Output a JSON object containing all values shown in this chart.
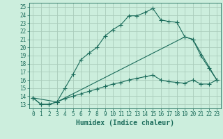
{
  "xlabel": "Humidex (Indice chaleur)",
  "xlim": [
    -0.5,
    23.5
  ],
  "ylim": [
    12.5,
    25.5
  ],
  "xticks": [
    0,
    1,
    2,
    3,
    4,
    5,
    6,
    7,
    8,
    9,
    10,
    11,
    12,
    13,
    14,
    15,
    16,
    17,
    18,
    19,
    20,
    21,
    22,
    23
  ],
  "yticks": [
    13,
    14,
    15,
    16,
    17,
    18,
    19,
    20,
    21,
    22,
    23,
    24,
    25
  ],
  "bg_color": "#cceedd",
  "grid_color": "#aaccbb",
  "line_color": "#1a6b5a",
  "line1_x": [
    0,
    1,
    2,
    3,
    4,
    5,
    6,
    7,
    8,
    9,
    10,
    11,
    12,
    13,
    14,
    15,
    16,
    17,
    18,
    19,
    20,
    21,
    22,
    23
  ],
  "line1_y": [
    13.8,
    13.0,
    13.0,
    13.3,
    15.0,
    16.7,
    18.5,
    19.3,
    20.0,
    21.4,
    22.2,
    22.8,
    23.9,
    23.9,
    24.3,
    24.8,
    23.4,
    23.2,
    23.1,
    21.3,
    21.0,
    19.0,
    17.5,
    16.0
  ],
  "line2_x": [
    0,
    3,
    19,
    20,
    23
  ],
  "line2_y": [
    13.8,
    13.3,
    21.3,
    21.0,
    16.0
  ],
  "line3_x": [
    0,
    1,
    2,
    3,
    4,
    5,
    6,
    7,
    8,
    9,
    10,
    11,
    12,
    13,
    14,
    15,
    16,
    17,
    18,
    19,
    20,
    21,
    22,
    23
  ],
  "line3_y": [
    13.8,
    13.0,
    13.0,
    13.3,
    13.7,
    14.0,
    14.3,
    14.6,
    14.9,
    15.2,
    15.5,
    15.7,
    16.0,
    16.2,
    16.4,
    16.6,
    16.0,
    15.8,
    15.7,
    15.6,
    16.0,
    15.5,
    15.5,
    16.0
  ],
  "font_color": "#1a6b5a",
  "tick_fontsize": 5.5,
  "label_fontsize": 7.0
}
